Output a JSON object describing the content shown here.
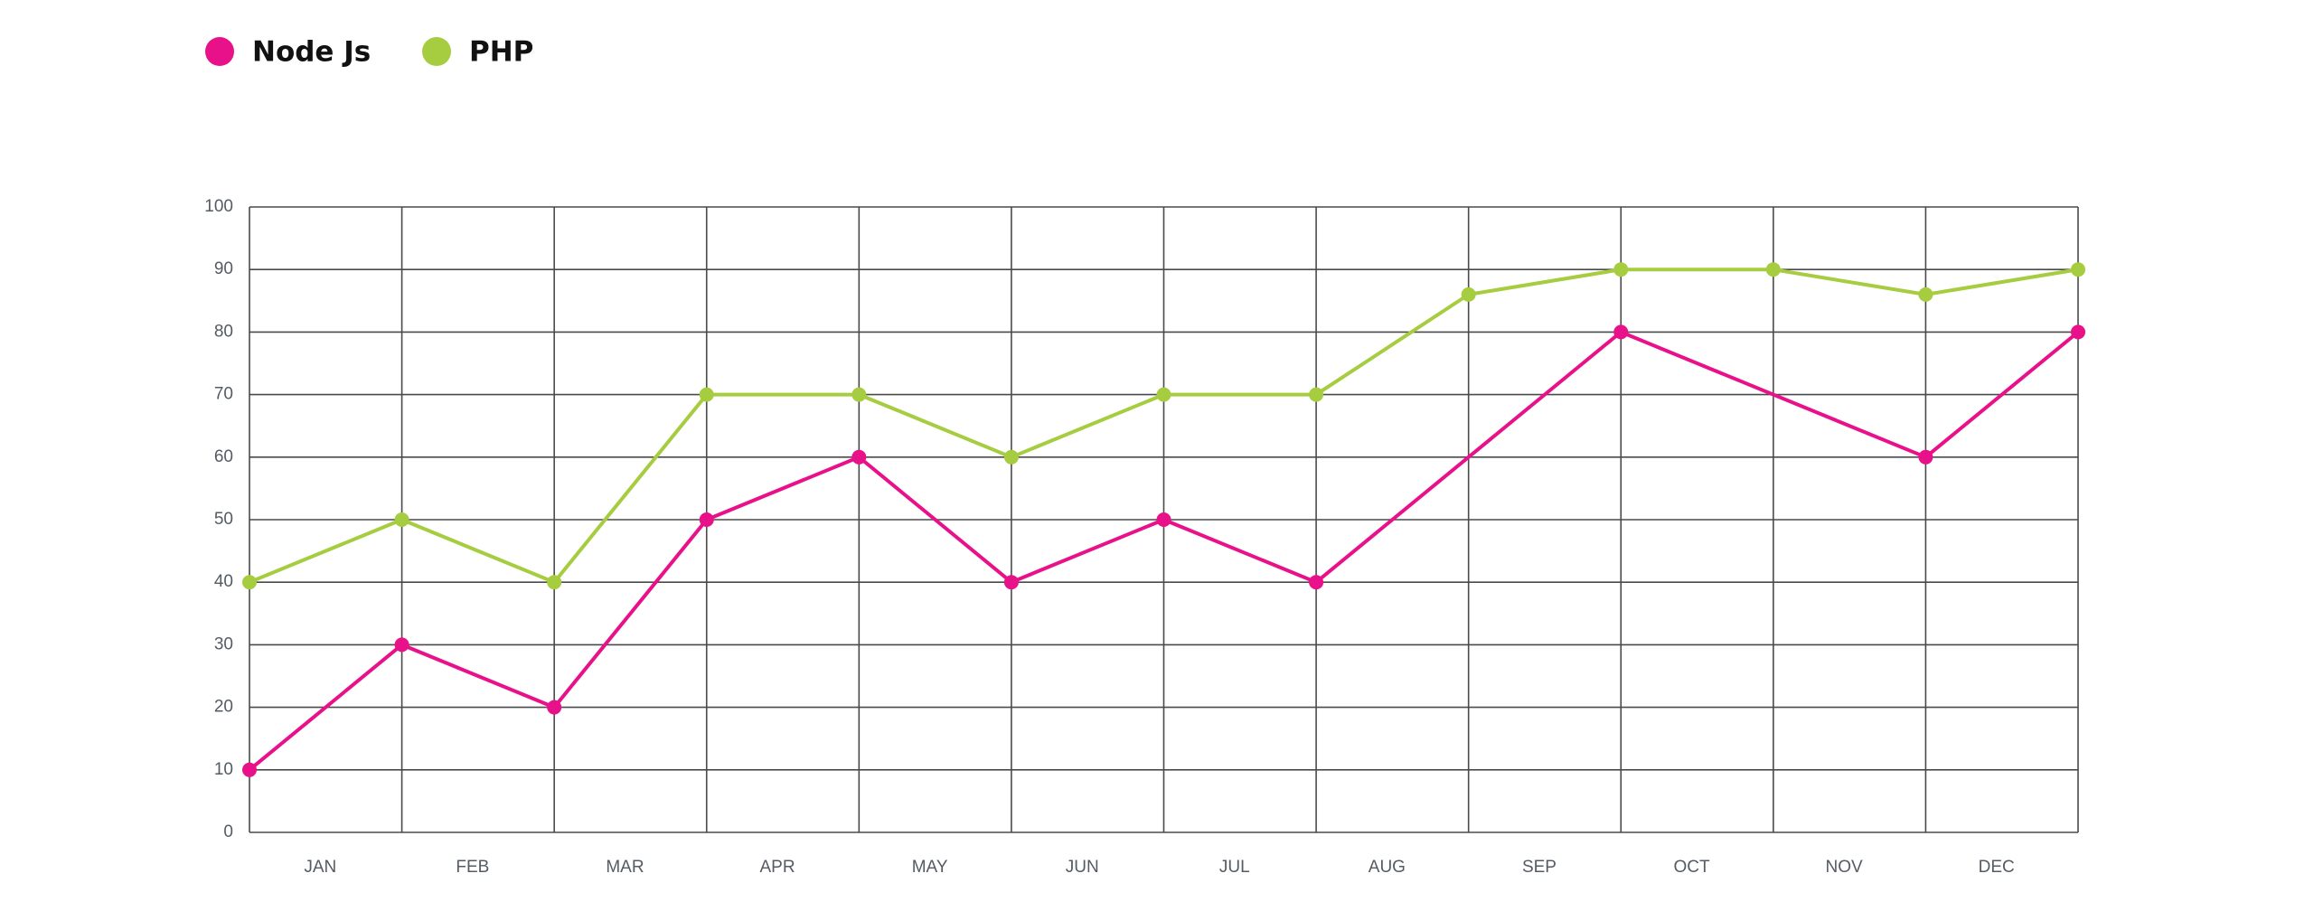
{
  "chart_data": {
    "type": "line",
    "categories": [
      "JAN",
      "FEB",
      "MAR",
      "APR",
      "MAY",
      "JUN",
      "JUL",
      "AUG",
      "SEP",
      "OCT",
      "NOV",
      "DEC"
    ],
    "xlim": [
      0,
      12
    ],
    "ylim": [
      0,
      100
    ],
    "yticks": [
      0,
      10,
      20,
      30,
      40,
      50,
      60,
      70,
      80,
      90,
      100
    ],
    "grid": true,
    "legend": "top-left",
    "series": [
      {
        "name": "Node Js",
        "color": "#e8118a",
        "x": [
          0,
          1,
          2,
          3,
          4,
          5,
          6,
          7,
          9,
          11,
          12
        ],
        "values": [
          10,
          30,
          20,
          50,
          60,
          40,
          50,
          40,
          80,
          60,
          80
        ]
      },
      {
        "name": "PHP",
        "color": "#a6cc3f",
        "x": [
          0,
          1,
          2,
          3,
          4,
          5,
          6,
          7,
          8,
          9,
          10,
          11,
          12
        ],
        "values": [
          40,
          50,
          40,
          70,
          70,
          60,
          70,
          70,
          86,
          90,
          90,
          86,
          90
        ]
      }
    ]
  }
}
